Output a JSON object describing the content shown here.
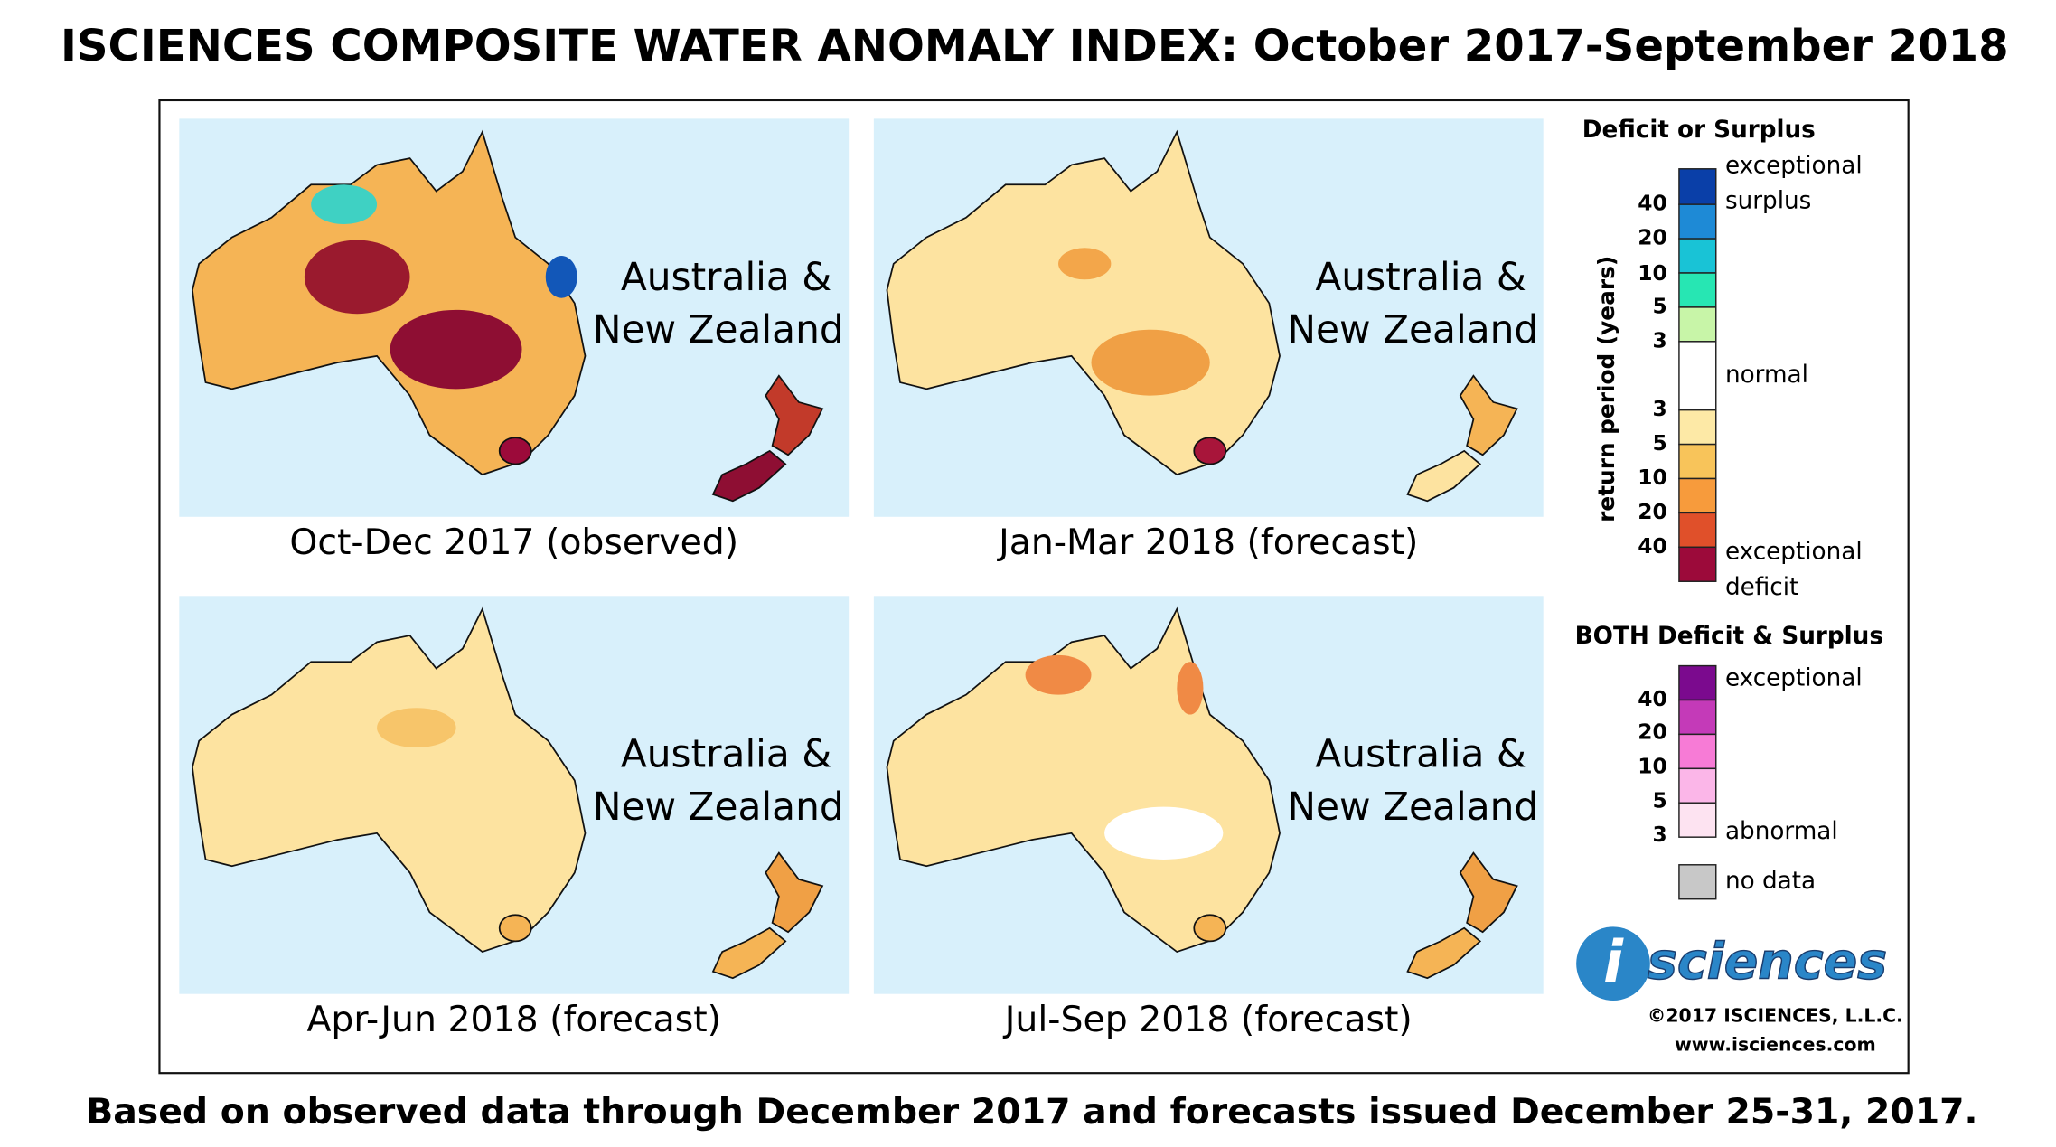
{
  "title": "ISCIENCES COMPOSITE WATER ANOMALY INDEX: October 2017-September 2018",
  "panels": [
    {
      "region": [
        "Australia &",
        "New Zealand"
      ],
      "caption": "Oct-Dec 2017 (observed)"
    },
    {
      "region": [
        "Australia &",
        "New Zealand"
      ],
      "caption": "Jan-Mar 2018 (forecast)"
    },
    {
      "region": [
        "Australia &",
        "New Zealand"
      ],
      "caption": "Apr-Jun 2018 (forecast)"
    },
    {
      "region": [
        "Australia &",
        "New Zealand"
      ],
      "caption": "Jul-Sep 2018 (forecast)"
    }
  ],
  "legend": {
    "title": "Deficit or Surplus",
    "axis_label": "return period (years)",
    "surplus_ticks": [
      40,
      20,
      10,
      5,
      3
    ],
    "deficit_ticks": [
      3,
      5,
      10,
      20,
      40
    ],
    "labels": [
      "exceptional",
      "surplus",
      "normal",
      "exceptional",
      "deficit"
    ],
    "both_title": "BOTH Deficit & Surplus",
    "both_ticks": [
      40,
      20,
      10,
      5,
      3
    ],
    "both_labels": [
      "exceptional",
      "abnormal"
    ],
    "no_data": "no data"
  },
  "logo": {
    "mark": "i",
    "text": "sciences"
  },
  "copyright": "©2017 ISCIENCES, L.L.C.",
  "website": "www.isciences.com",
  "footer": "Based on observed data through December 2017 and forecasts issued December 25-31, 2017."
}
